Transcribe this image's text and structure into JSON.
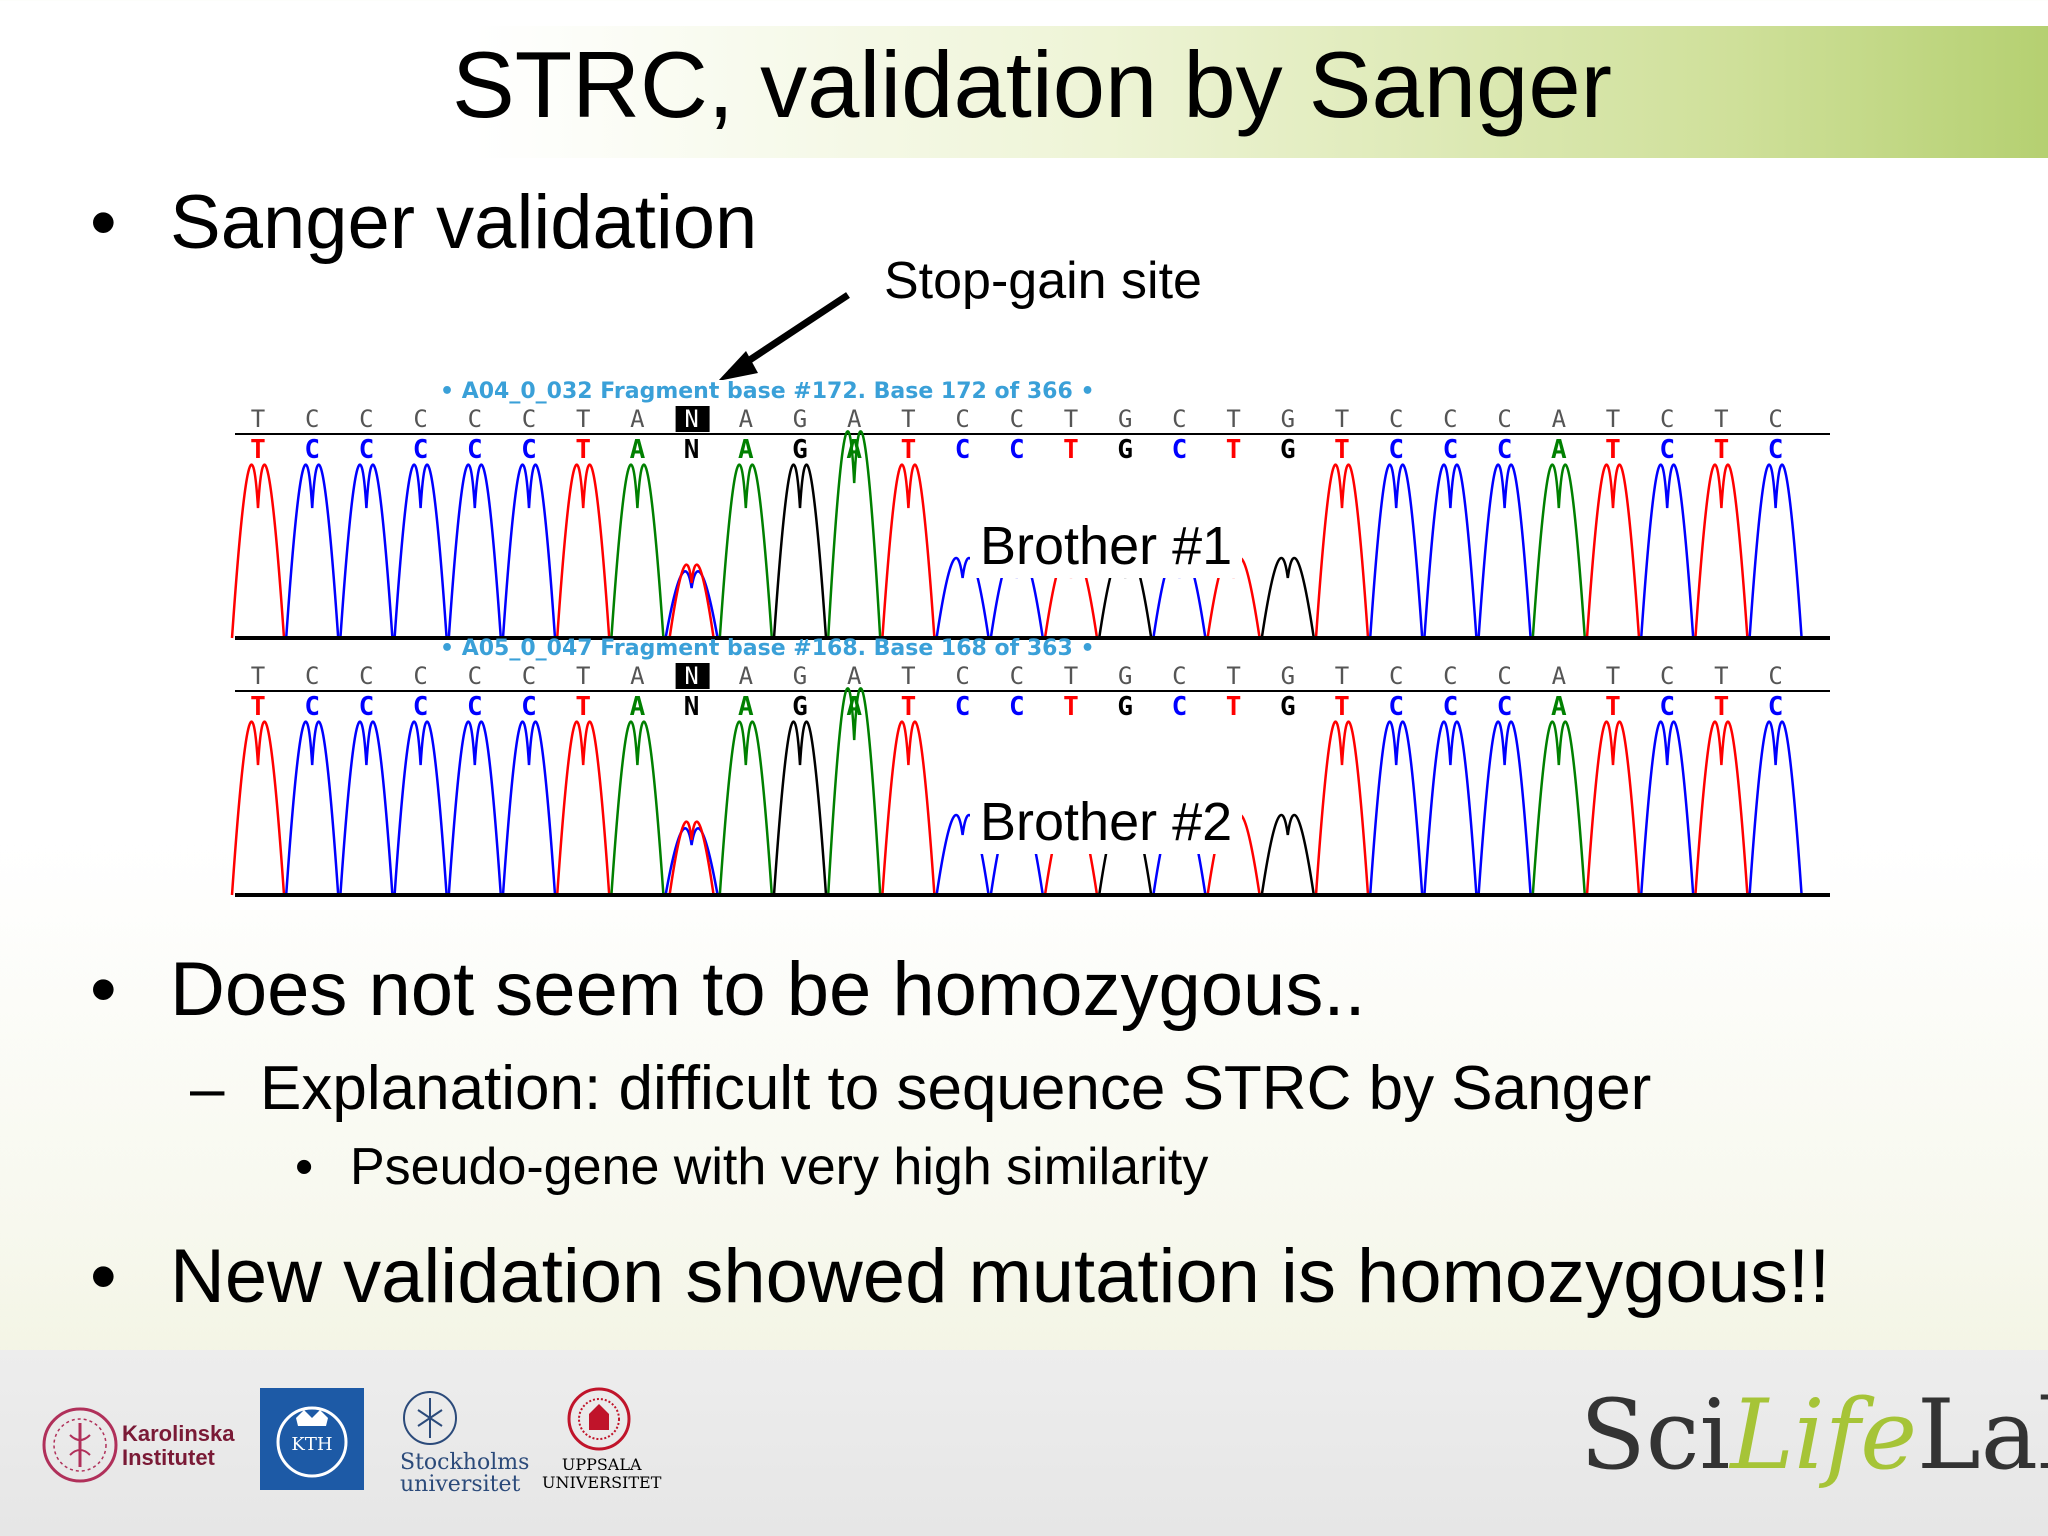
{
  "slide": {
    "title": "STRC, validation by Sanger",
    "bullets": {
      "b1": "Sanger validation",
      "b2": "Does not seem to be homozygous..",
      "b3": "New validation showed mutation is homozygous!!"
    },
    "sub1": "Explanation: difficult to sequence STRC by Sanger",
    "sub2": "Pseudo-gene with very high similarity",
    "bullet_symbol": "•",
    "dash_symbol": "–",
    "stop_label": "Stop-gain site"
  },
  "traces": [
    {
      "header": "• A04_0_032 Fragment base #172. Base 172 of 366 •",
      "sample_label": "Brother #1",
      "bases": [
        "T",
        "C",
        "C",
        "C",
        "C",
        "C",
        "T",
        "A",
        "N",
        "A",
        "G",
        "A",
        "T",
        "C",
        "C",
        "T",
        "G",
        "C",
        "T",
        "G",
        "T",
        "C",
        "C",
        "C",
        "A",
        "T",
        "C",
        "T",
        "C"
      ]
    },
    {
      "header": "• A05_0_047 Fragment base #168. Base 168 of 363 •",
      "sample_label": "Brother #2",
      "bases": [
        "T",
        "C",
        "C",
        "C",
        "C",
        "C",
        "T",
        "A",
        "N",
        "A",
        "G",
        "A",
        "T",
        "C",
        "C",
        "T",
        "G",
        "C",
        "T",
        "G",
        "T",
        "C",
        "C",
        "C",
        "A",
        "T",
        "C",
        "T",
        "C"
      ]
    }
  ],
  "colors": {
    "A": "#008000",
    "C": "#0000ff",
    "G": "#000000",
    "T": "#ff0000",
    "N": "#000000",
    "header_text": "#3aa0d8",
    "title_gradient_end": "#b5d071"
  },
  "footer": {
    "ki": "Karolinska\nInstitutet",
    "kth": "KTH",
    "su": "Stockholms\nuniversitet",
    "uu": "UPPSALA\nUNIVERSITET",
    "scilifelab": {
      "sci": "Sci",
      "life": "Life",
      "lab": "Lab"
    }
  }
}
